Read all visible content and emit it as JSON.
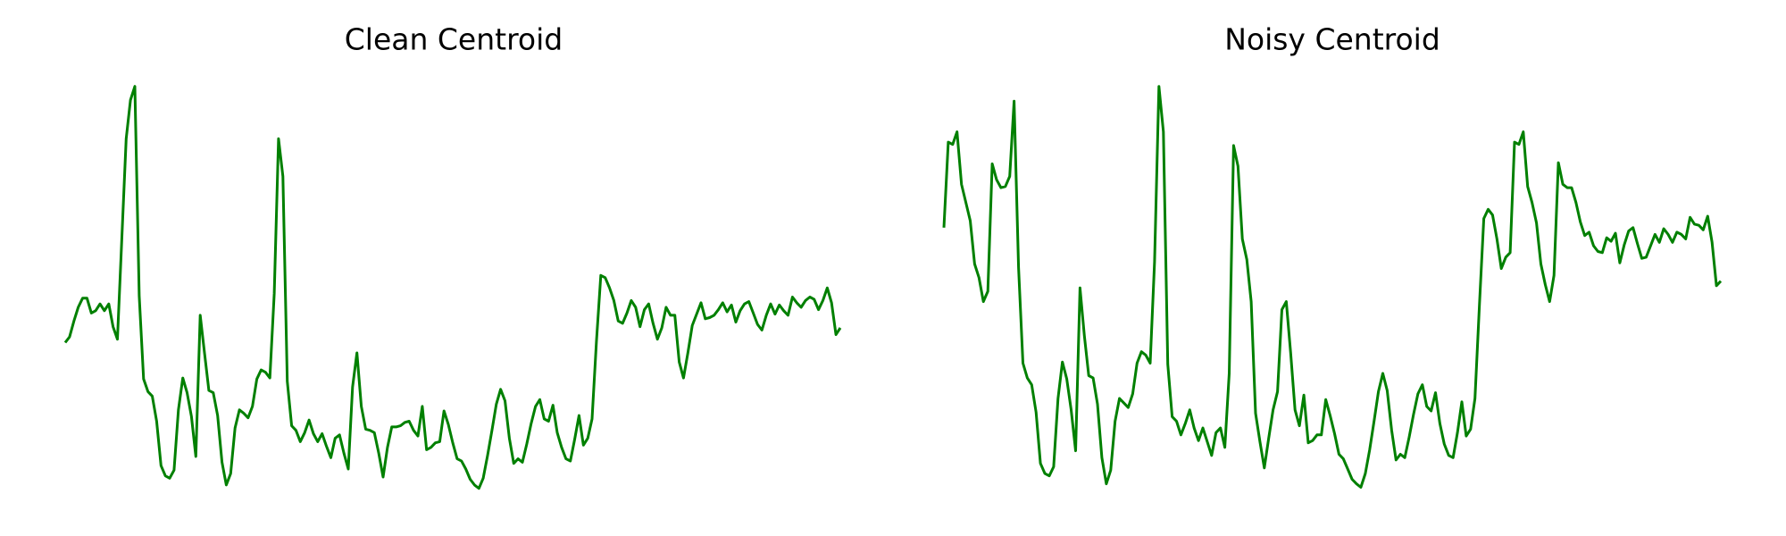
{
  "chart_data": [
    {
      "type": "line",
      "title": "Clean Centroid",
      "color": "#008000",
      "ylim": [
        0,
        360
      ],
      "values": [
        129,
        134,
        148,
        160,
        168,
        168,
        155,
        157,
        163,
        157,
        163,
        143,
        132,
        220,
        308,
        342,
        354,
        170,
        97,
        86,
        82,
        60,
        21,
        12,
        10,
        17,
        70,
        98,
        85,
        64,
        29,
        153,
        120,
        87,
        85,
        65,
        24,
        4,
        14,
        54,
        70,
        67,
        63,
        73,
        97,
        105,
        103,
        98,
        172,
        308,
        275,
        95,
        56,
        52,
        42,
        50,
        61,
        49,
        42,
        49,
        38,
        28,
        45,
        48,
        32,
        18,
        90,
        120,
        73,
        53,
        52,
        50,
        32,
        11,
        37,
        55,
        55,
        56,
        59,
        60,
        52,
        47,
        73,
        35,
        37,
        41,
        42,
        69,
        57,
        41,
        27,
        25,
        18,
        9,
        4,
        1,
        10,
        30,
        52,
        75,
        88,
        78,
        45,
        23,
        27,
        24,
        40,
        58,
        73,
        79,
        62,
        60,
        74,
        50,
        37,
        27,
        25,
        44,
        65,
        39,
        45,
        62,
        130,
        188,
        186,
        177,
        166,
        148,
        146,
        155,
        166,
        160,
        143,
        158,
        163,
        146,
        132,
        142,
        160,
        153,
        153,
        112,
        98,
        120,
        144,
        154,
        164,
        150,
        151,
        153,
        158,
        164,
        156,
        162,
        147,
        157,
        163,
        165,
        155,
        145,
        140,
        153,
        163,
        154,
        162,
        157,
        153,
        169,
        164,
        160,
        166,
        169,
        167,
        158,
        166,
        177,
        164,
        136,
        142
      ]
    },
    {
      "type": "line",
      "title": "Noisy Centroid",
      "color": "#008000",
      "ylim": [
        0,
        360
      ],
      "values": [
        230,
        305,
        303,
        314,
        268,
        252,
        236,
        198,
        186,
        165,
        174,
        286,
        272,
        265,
        266,
        275,
        341,
        195,
        111,
        98,
        92,
        68,
        23,
        14,
        12,
        20,
        80,
        112,
        97,
        70,
        34,
        177,
        135,
        100,
        98,
        75,
        28,
        5,
        17,
        60,
        80,
        76,
        72,
        84,
        111,
        121,
        118,
        111,
        200,
        354,
        314,
        110,
        64,
        60,
        48,
        58,
        70,
        54,
        43,
        54,
        42,
        30,
        50,
        54,
        37,
        102,
        302,
        284,
        220,
        202,
        165,
        67,
        42,
        19,
        45,
        70,
        86,
        158,
        165,
        120,
        70,
        56,
        83,
        41,
        43,
        48,
        48,
        79,
        65,
        49,
        31,
        27,
        18,
        9,
        5,
        2,
        14,
        35,
        60,
        86,
        102,
        87,
        52,
        26,
        31,
        28,
        46,
        66,
        84,
        92,
        73,
        69,
        85,
        58,
        40,
        30,
        28,
        50,
        77,
        47,
        53,
        80,
        162,
        238,
        246,
        241,
        220,
        194,
        204,
        208,
        305,
        303,
        314,
        266,
        252,
        234,
        198,
        180,
        165,
        188,
        287,
        268,
        265,
        265,
        252,
        235,
        223,
        226,
        214,
        209,
        208,
        221,
        218,
        225,
        199,
        215,
        227,
        230,
        216,
        203,
        204,
        214,
        224,
        217,
        229,
        224,
        217,
        226,
        224,
        220,
        239,
        233,
        232,
        228,
        240,
        217,
        179,
        183
      ]
    }
  ]
}
